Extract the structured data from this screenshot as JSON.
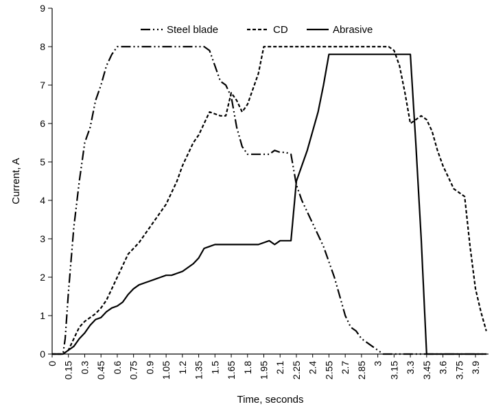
{
  "chart_data": {
    "type": "line",
    "xlabel": "Time, seconds",
    "ylabel": "Current, A",
    "xlim": [
      0,
      4.02
    ],
    "ylim": [
      0,
      9
    ],
    "yticks": [
      0,
      1,
      2,
      3,
      4,
      5,
      6,
      7,
      8,
      9
    ],
    "xticks": [
      "0",
      "0.15",
      "0.3",
      "0.45",
      "0.6",
      "0.75",
      "0.9",
      "1.05",
      "1.2",
      "1.35",
      "1.5",
      "1.65",
      "1.8",
      "1.95",
      "2.1",
      "2.25",
      "2.4",
      "2.55",
      "2.7",
      "2.85",
      "3",
      "3.15",
      "3.3",
      "3.45",
      "3.6",
      "3.75",
      "3.9"
    ],
    "grid": false,
    "legend_position": "top",
    "series": [
      {
        "name": "Steel blade",
        "style": "dash-dot-dot",
        "color": "#000000",
        "x": [
          0,
          0.1,
          0.12,
          0.15,
          0.2,
          0.25,
          0.3,
          0.35,
          0.4,
          0.45,
          0.5,
          0.55,
          0.6,
          0.65,
          0.7,
          0.8,
          0.9,
          1.0,
          1.2,
          1.4,
          1.45,
          1.5,
          1.55,
          1.6,
          1.65,
          1.7,
          1.75,
          1.8,
          1.9,
          2.0,
          2.05,
          2.1,
          2.15,
          2.2,
          2.25,
          2.3,
          2.35,
          2.4,
          2.45,
          2.5,
          2.55,
          2.6,
          2.65,
          2.7,
          2.75,
          2.8,
          2.85,
          2.9,
          2.95,
          3.0,
          3.05,
          3.1,
          3.2,
          3.3,
          3.5,
          3.7,
          3.9,
          4.0
        ],
        "y": [
          0,
          0,
          0.4,
          1.6,
          3.3,
          4.5,
          5.5,
          5.9,
          6.6,
          7.0,
          7.5,
          7.8,
          8.0,
          8.0,
          8.0,
          8.0,
          8.0,
          8.0,
          8.0,
          8.0,
          7.9,
          7.5,
          7.1,
          7.0,
          6.7,
          5.9,
          5.4,
          5.2,
          5.2,
          5.2,
          5.3,
          5.25,
          5.25,
          5.2,
          4.4,
          4.0,
          3.7,
          3.4,
          3.1,
          2.8,
          2.4,
          2.0,
          1.5,
          1.0,
          0.7,
          0.6,
          0.4,
          0.3,
          0.2,
          0.1,
          0,
          0,
          0,
          0,
          0,
          0,
          0,
          0
        ]
      },
      {
        "name": "CD",
        "style": "dashed",
        "color": "#000000",
        "x": [
          0,
          0.1,
          0.15,
          0.2,
          0.25,
          0.3,
          0.35,
          0.4,
          0.45,
          0.5,
          0.55,
          0.6,
          0.65,
          0.7,
          0.75,
          0.8,
          0.85,
          0.9,
          0.95,
          1.0,
          1.05,
          1.1,
          1.15,
          1.2,
          1.25,
          1.3,
          1.35,
          1.4,
          1.45,
          1.5,
          1.55,
          1.6,
          1.65,
          1.7,
          1.75,
          1.8,
          1.85,
          1.9,
          1.95,
          2.0,
          2.2,
          2.4,
          2.6,
          2.8,
          3.0,
          3.1,
          3.15,
          3.2,
          3.25,
          3.3,
          3.35,
          3.4,
          3.45,
          3.5,
          3.55,
          3.6,
          3.65,
          3.7,
          3.75,
          3.8,
          3.85,
          3.9,
          3.95,
          4.0
        ],
        "y": [
          0,
          0,
          0.1,
          0.4,
          0.7,
          0.85,
          0.95,
          1.05,
          1.2,
          1.4,
          1.7,
          2.0,
          2.3,
          2.6,
          2.75,
          2.9,
          3.1,
          3.3,
          3.5,
          3.7,
          3.9,
          4.2,
          4.5,
          4.9,
          5.2,
          5.5,
          5.7,
          6.0,
          6.3,
          6.25,
          6.2,
          6.2,
          6.8,
          6.6,
          6.3,
          6.5,
          6.9,
          7.3,
          8.0,
          8.0,
          8.0,
          8.0,
          8.0,
          8.0,
          8.0,
          8.0,
          7.9,
          7.5,
          6.8,
          6.0,
          6.1,
          6.2,
          6.1,
          5.8,
          5.3,
          4.9,
          4.6,
          4.3,
          4.2,
          4.1,
          2.8,
          1.7,
          1.1,
          0.6
        ]
      },
      {
        "name": "Abrasive",
        "style": "solid",
        "color": "#000000",
        "x": [
          0,
          0.1,
          0.15,
          0.2,
          0.25,
          0.3,
          0.35,
          0.4,
          0.45,
          0.5,
          0.55,
          0.6,
          0.65,
          0.7,
          0.75,
          0.8,
          0.85,
          0.9,
          0.95,
          1.0,
          1.05,
          1.1,
          1.15,
          1.2,
          1.25,
          1.3,
          1.35,
          1.4,
          1.45,
          1.5,
          1.55,
          1.6,
          1.65,
          1.7,
          1.8,
          1.9,
          1.95,
          2.0,
          2.05,
          2.1,
          2.15,
          2.2,
          2.25,
          2.3,
          2.35,
          2.4,
          2.45,
          2.5,
          2.55,
          2.6,
          2.65,
          2.7,
          2.8,
          2.9,
          3.0,
          3.1,
          3.2,
          3.3,
          3.35,
          3.4,
          3.45,
          3.5,
          3.6,
          3.8,
          4.0
        ],
        "y": [
          0,
          0,
          0.1,
          0.2,
          0.4,
          0.55,
          0.75,
          0.9,
          0.95,
          1.1,
          1.2,
          1.25,
          1.35,
          1.55,
          1.7,
          1.8,
          1.85,
          1.9,
          1.95,
          2.0,
          2.05,
          2.05,
          2.1,
          2.15,
          2.25,
          2.35,
          2.5,
          2.75,
          2.8,
          2.85,
          2.85,
          2.85,
          2.85,
          2.85,
          2.85,
          2.85,
          2.9,
          2.95,
          2.85,
          2.95,
          2.95,
          2.95,
          4.5,
          4.9,
          5.3,
          5.8,
          6.3,
          7.0,
          7.8,
          7.8,
          7.8,
          7.8,
          7.8,
          7.8,
          7.8,
          7.8,
          7.8,
          7.8,
          5.5,
          3.0,
          0,
          0,
          0,
          0,
          0
        ]
      }
    ]
  }
}
